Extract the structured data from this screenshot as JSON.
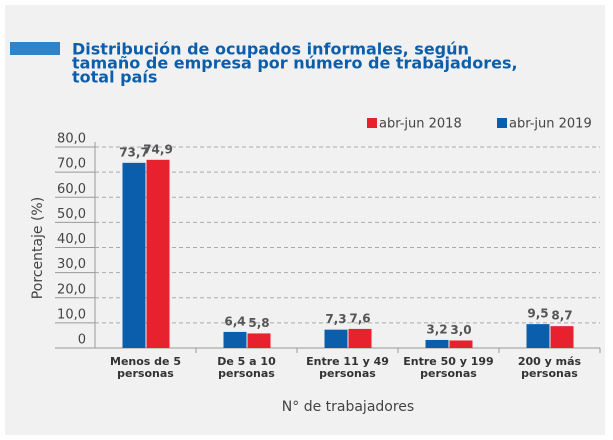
{
  "chart_data": {
    "type": "bar",
    "title": [
      "Distribución de ocupados informales, según",
      "tamaño de empresa por número de trabajadores,",
      "total país"
    ],
    "x_label": "N° de trabajadores",
    "y_label": "Porcentaje (%)",
    "categories": [
      [
        "Menos de 5",
        "personas"
      ],
      [
        "De 5 a 10",
        "personas"
      ],
      [
        "Entre 11 y 49",
        "personas"
      ],
      [
        "Entre 50 y 199",
        "personas"
      ],
      [
        "200 y más",
        "personas"
      ]
    ],
    "series": [
      {
        "name": "abr-jun 2019",
        "color": "#0b5eab",
        "values": [
          73.7,
          6.4,
          7.3,
          3.2,
          9.5
        ],
        "value_labels": [
          "73,7",
          "6,4",
          "7,3",
          "3,2",
          "9,5"
        ]
      },
      {
        "name": "abr-jun 2018",
        "color": "#e8212e",
        "values": [
          74.9,
          5.8,
          7.6,
          3.0,
          8.7
        ],
        "value_labels": [
          "74,9",
          "5,8",
          "7,6",
          "3,0",
          "8,7"
        ]
      }
    ],
    "legend_order": [
      1,
      0
    ],
    "ylim": [
      0,
      80
    ],
    "yticks": [
      0,
      {
        "value": 10,
        "label": "10,0"
      },
      {
        "value": 20,
        "label": "20,0"
      },
      {
        "value": 30,
        "label": "30,0"
      },
      {
        "value": 40,
        "label": "40,0"
      },
      {
        "value": 50,
        "label": "50,0"
      },
      {
        "value": 60,
        "label": "60,0"
      },
      {
        "value": 70,
        "label": "70,0"
      },
      {
        "value": 80,
        "label": "80,0"
      }
    ],
    "grid": true
  }
}
